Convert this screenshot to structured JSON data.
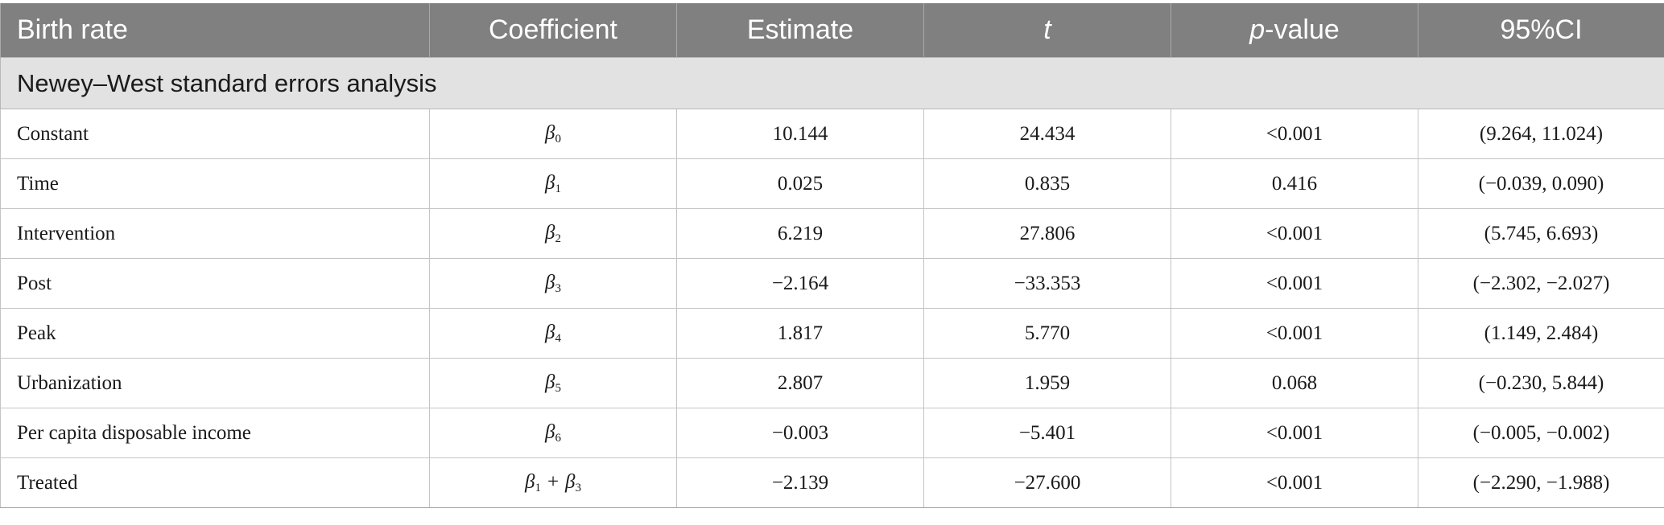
{
  "header": {
    "col1": "Birth rate",
    "col2": "Coefficient",
    "col3": "Estimate",
    "col4": "t",
    "col5_italic": "p",
    "col5_rest": "-value",
    "col6": "95%CI"
  },
  "section_label": "Newey–West standard errors analysis",
  "rows": [
    {
      "name": "Constant",
      "coef_symbol": "β",
      "coef_sub": "0",
      "estimate": "10.144",
      "t": "24.434",
      "p": "<0.001",
      "ci": "(9.264, 11.024)"
    },
    {
      "name": "Time",
      "coef_symbol": "β",
      "coef_sub": "1",
      "estimate": "0.025",
      "t": "0.835",
      "p": "0.416",
      "ci": "(−0.039, 0.090)"
    },
    {
      "name": "Intervention",
      "coef_symbol": "β",
      "coef_sub": "2",
      "estimate": "6.219",
      "t": "27.806",
      "p": "<0.001",
      "ci": "(5.745, 6.693)"
    },
    {
      "name": "Post",
      "coef_symbol": "β",
      "coef_sub": "3",
      "estimate": "−2.164",
      "t": "−33.353",
      "p": "<0.001",
      "ci": "(−2.302, −2.027)"
    },
    {
      "name": "Peak",
      "coef_symbol": "β",
      "coef_sub": "4",
      "estimate": "1.817",
      "t": "5.770",
      "p": "<0.001",
      "ci": "(1.149, 2.484)"
    },
    {
      "name": "Urbanization",
      "coef_symbol": "β",
      "coef_sub": "5",
      "estimate": "2.807",
      "t": "1.959",
      "p": "0.068",
      "ci": "(−0.230, 5.844)"
    },
    {
      "name": "Per capita disposable income",
      "coef_symbol": "β",
      "coef_sub": "6",
      "estimate": "−0.003",
      "t": "−5.401",
      "p": "<0.001",
      "ci": "(−0.005, −0.002)"
    }
  ],
  "treated_row": {
    "name": "Treated",
    "coef_a_symbol": "β",
    "coef_a_sub": "1",
    "coef_op": "+",
    "coef_b_symbol": "β",
    "coef_b_sub": "3",
    "estimate": "−2.139",
    "t": "−27.600",
    "p": "<0.001",
    "ci": "(−2.290, −1.988)"
  },
  "colors": {
    "header_bg": "#808080",
    "header_text": "#ffffff",
    "section_bg": "#e2e2e2",
    "grid": "#c4c4c4"
  }
}
